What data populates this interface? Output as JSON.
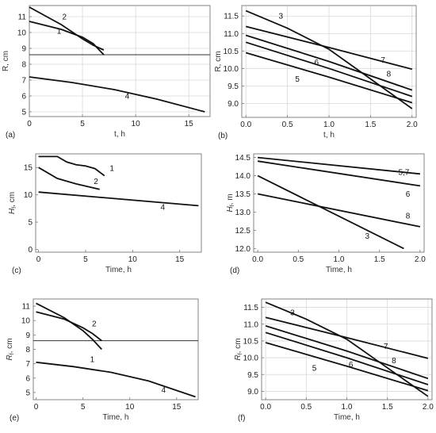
{
  "chart_data": [
    {
      "panel": "(a)",
      "type": "line",
      "xlabel": "t, h",
      "ylabel": "R, cm",
      "xlim": [
        0,
        17
      ],
      "ylim": [
        4.7,
        11.7
      ],
      "xticks": [
        "0",
        "5",
        "10",
        "15"
      ],
      "yticks": [
        "5",
        "6",
        "7",
        "8",
        "9",
        "10",
        "11"
      ],
      "grid": true,
      "reference_lines": [
        {
          "y": 8.6
        }
      ],
      "series": [
        {
          "label": "1",
          "x": [
            0,
            3,
            5,
            6,
            7
          ],
          "y": [
            10.7,
            10.2,
            9.7,
            9.3,
            8.6
          ]
        },
        {
          "label": "2",
          "x": [
            0,
            3,
            5,
            6,
            7
          ],
          "y": [
            11.6,
            10.5,
            9.6,
            9.2,
            8.9
          ]
        },
        {
          "label": "4",
          "x": [
            0,
            4,
            8,
            12,
            16.5
          ],
          "y": [
            7.2,
            6.85,
            6.4,
            5.8,
            5.0
          ]
        }
      ]
    },
    {
      "panel": "(b)",
      "type": "line",
      "xlabel": "t, h",
      "ylabel": "R, cm",
      "xlim": [
        -0.05,
        2.05
      ],
      "ylim": [
        8.6,
        11.8
      ],
      "xticks": [
        "0.0",
        "0.5",
        "1.0",
        "1.5",
        "2.0"
      ],
      "yticks": [
        "9.0",
        "9.5",
        "10.0",
        "10.5",
        "11.0",
        "11.5"
      ],
      "grid": true,
      "series": [
        {
          "label": "3",
          "x": [
            0,
            0.5,
            1.0,
            1.5,
            2.0
          ],
          "y": [
            11.65,
            11.15,
            10.55,
            9.7,
            8.85
          ]
        },
        {
          "label": "7",
          "x": [
            0,
            1.0,
            2.0
          ],
          "y": [
            11.2,
            10.6,
            9.98
          ]
        },
        {
          "label": "6",
          "x": [
            0,
            1.0,
            2.0
          ],
          "y": [
            10.95,
            10.2,
            9.38
          ]
        },
        {
          "label": "8",
          "x": [
            0,
            1.0,
            2.0
          ],
          "y": [
            10.75,
            10.0,
            9.2
          ]
        },
        {
          "label": "5",
          "x": [
            0,
            1.0,
            2.0
          ],
          "y": [
            10.45,
            9.75,
            9.02
          ]
        }
      ]
    },
    {
      "panel": "(c)",
      "type": "line",
      "xlabel": "Time, h",
      "ylabel": "H_f, cm",
      "xlim": [
        -0.3,
        17.3
      ],
      "ylim": [
        -0.5,
        17.5
      ],
      "xticks": [
        "0",
        "5",
        "10",
        "15"
      ],
      "yticks": [
        "0",
        "5",
        "10",
        "15"
      ],
      "grid": false,
      "series": [
        {
          "label": "1",
          "x": [
            0,
            2,
            3,
            4,
            5,
            6,
            7
          ],
          "y": [
            17.0,
            17.0,
            16.0,
            15.5,
            15.3,
            14.8,
            13.5
          ]
        },
        {
          "label": "2",
          "x": [
            0,
            2,
            4,
            6.5
          ],
          "y": [
            15.0,
            13.0,
            12.0,
            11.0
          ]
        },
        {
          "label": "4",
          "x": [
            0,
            17
          ],
          "y": [
            10.5,
            8.0
          ]
        }
      ]
    },
    {
      "panel": "(d)",
      "type": "line",
      "xlabel": "Time, h",
      "ylabel": "H_f, m",
      "xlim": [
        -0.05,
        2.05
      ],
      "ylim": [
        11.9,
        14.6
      ],
      "xticks": [
        "0.0",
        "0.5",
        "1.0",
        "1.5",
        "2.0"
      ],
      "yticks": [
        "12.0",
        "12.5",
        "13.0",
        "13.5",
        "14.0",
        "14.5"
      ],
      "grid": false,
      "series": [
        {
          "label": "5,7",
          "x": [
            0,
            2.0
          ],
          "y": [
            14.5,
            14.05
          ]
        },
        {
          "label": "6",
          "x": [
            0,
            2.0
          ],
          "y": [
            14.4,
            13.72
          ]
        },
        {
          "label": "8",
          "x": [
            0,
            2.0
          ],
          "y": [
            13.5,
            12.6
          ]
        },
        {
          "label": "3",
          "x": [
            0,
            1.8
          ],
          "y": [
            14.0,
            12.0
          ]
        }
      ]
    },
    {
      "panel": "(e)",
      "type": "line",
      "xlabel": "Time, h",
      "ylabel": "R_f, cm",
      "xlim": [
        -0.3,
        17.3
      ],
      "ylim": [
        4.5,
        11.5
      ],
      "xticks": [
        "0",
        "5",
        "10",
        "15"
      ],
      "yticks": [
        "5",
        "6",
        "7",
        "8",
        "9",
        "10",
        "11"
      ],
      "grid": false,
      "reference_lines": [
        {
          "y": 8.6
        }
      ],
      "series": [
        {
          "label": "1",
          "x": [
            0,
            3,
            5,
            6,
            7
          ],
          "y": [
            11.2,
            10.2,
            9.3,
            8.7,
            8.0
          ]
        },
        {
          "label": "2",
          "x": [
            0,
            3,
            5,
            6,
            7
          ],
          "y": [
            10.6,
            10.1,
            9.5,
            9.1,
            8.6
          ]
        },
        {
          "label": "4",
          "x": [
            0,
            4,
            8,
            12,
            17
          ],
          "y": [
            7.1,
            6.8,
            6.4,
            5.8,
            4.7
          ]
        }
      ]
    },
    {
      "panel": "(f)",
      "type": "line",
      "xlabel": "Time, h",
      "ylabel": "R_f, cm",
      "xlim": [
        -0.05,
        2.05
      ],
      "ylim": [
        8.75,
        11.75
      ],
      "xticks": [
        "0.0",
        "0.5",
        "1.0",
        "1.5",
        "2.0"
      ],
      "yticks": [
        "9.0",
        "9.5",
        "10.0",
        "10.5",
        "11.0",
        "11.5"
      ],
      "grid": true,
      "series": [
        {
          "label": "3",
          "x": [
            0,
            0.5,
            1.0,
            1.5,
            2.0
          ],
          "y": [
            11.65,
            11.15,
            10.55,
            9.7,
            8.85
          ]
        },
        {
          "label": "7",
          "x": [
            0,
            1.0,
            2.0
          ],
          "y": [
            11.2,
            10.6,
            9.98
          ]
        },
        {
          "label": "6",
          "x": [
            0,
            1.0,
            2.0
          ],
          "y": [
            10.95,
            10.2,
            9.38
          ]
        },
        {
          "label": "8",
          "x": [
            0,
            1.0,
            2.0
          ],
          "y": [
            10.75,
            10.0,
            9.2
          ]
        },
        {
          "label": "5",
          "x": [
            0,
            1.0,
            2.0
          ],
          "y": [
            10.45,
            9.75,
            9.02
          ]
        }
      ]
    }
  ]
}
